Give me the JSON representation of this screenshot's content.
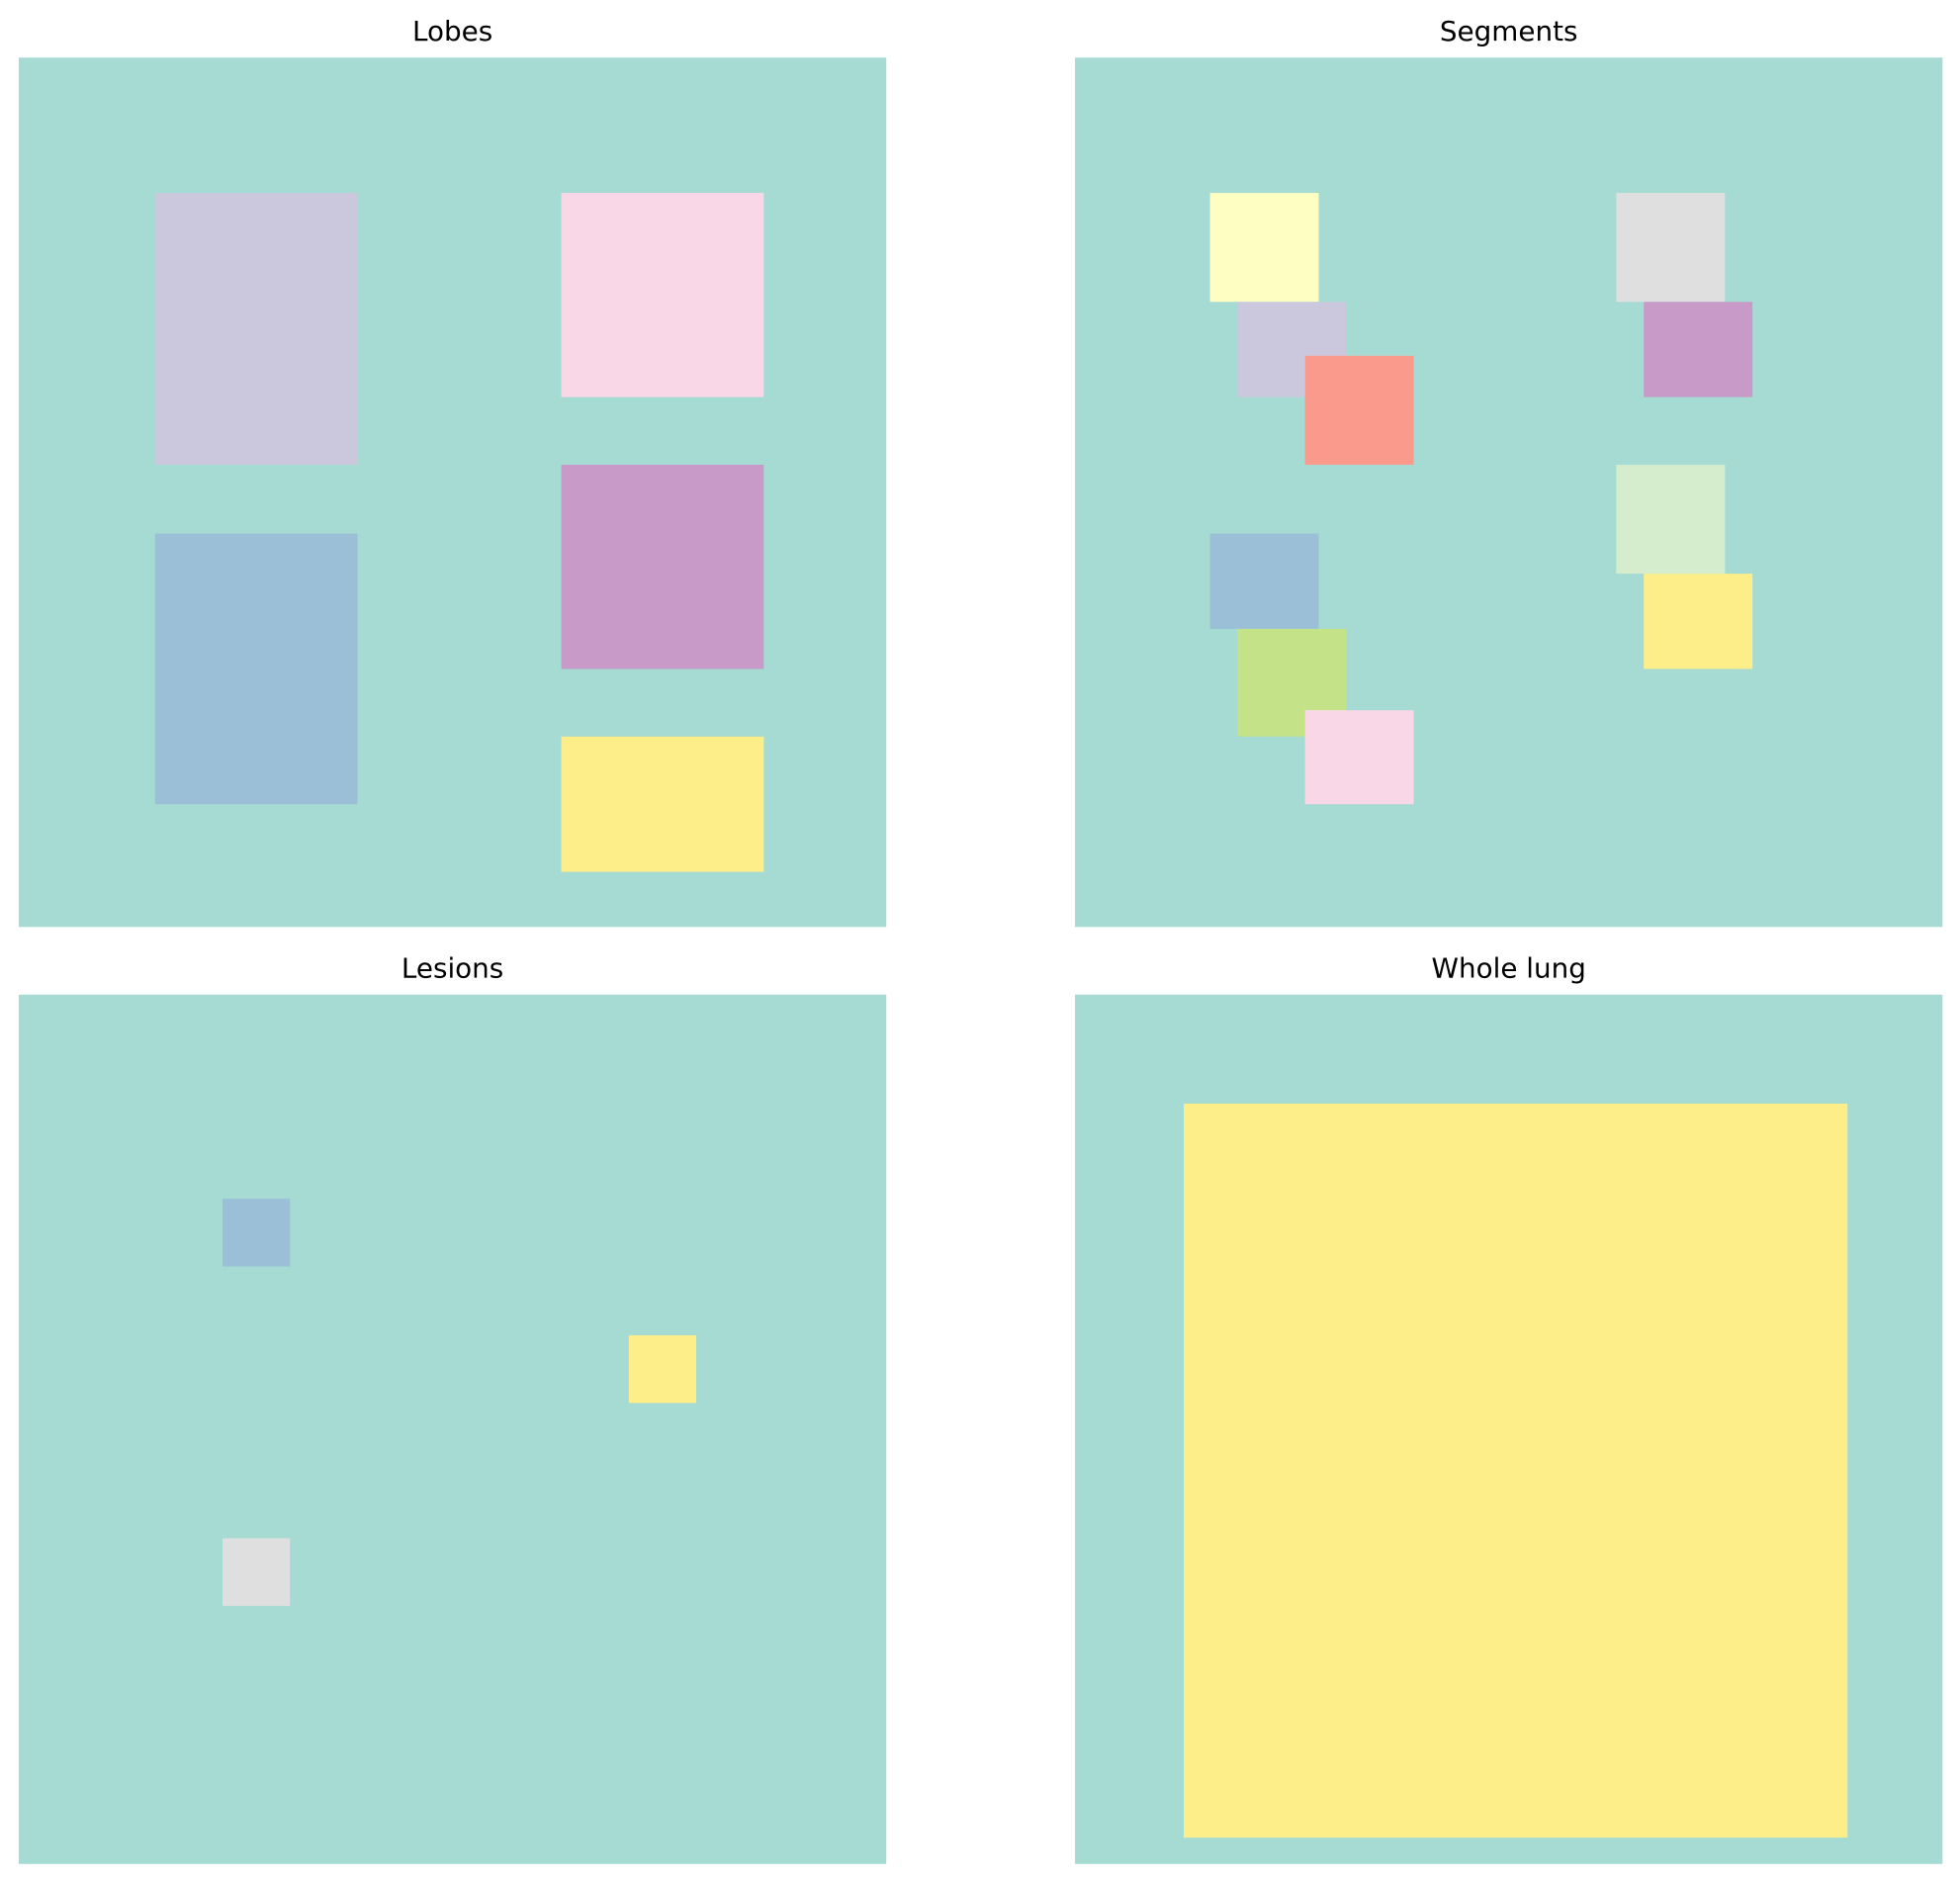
{
  "panels": [
    {
      "title": "Lobes"
    },
    {
      "title": "Segments"
    },
    {
      "title": "Lesions"
    },
    {
      "title": "Whole lung"
    }
  ]
}
